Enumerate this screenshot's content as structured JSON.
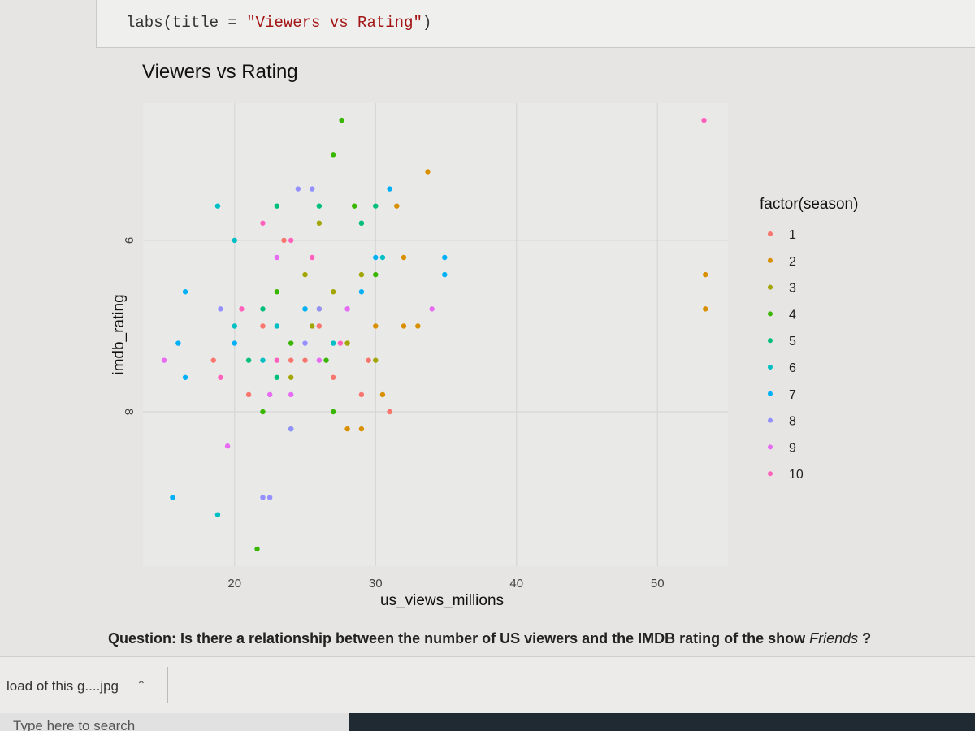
{
  "code": {
    "segments": [
      "labs(title = ",
      "\"Viewers vs Rating\"",
      ")"
    ]
  },
  "chart_data": {
    "type": "scatter",
    "title": "Viewers vs Rating",
    "x_label": "us_views_millions",
    "y_label": "imdb_rating",
    "legend_title": "factor(season)",
    "xlim": [
      13.5,
      55
    ],
    "ylim": [
      7.1,
      9.8
    ],
    "xticks": [
      20,
      30,
      40,
      50
    ],
    "yticks": [
      8,
      9
    ],
    "grid": true,
    "legend": "right",
    "series": [
      {
        "name": "1",
        "color": "#F8766D",
        "x": [
          18.5,
          21,
          22,
          24,
          25,
          26,
          27,
          29,
          29.5,
          31,
          23.5
        ],
        "values": [
          8.3,
          8.1,
          8.5,
          8.3,
          8.3,
          8.5,
          8.2,
          8.1,
          8.3,
          8.0,
          9.0
        ]
      },
      {
        "name": "2",
        "color": "#D89000",
        "x": [
          33.7,
          31.5,
          32,
          30,
          32,
          33,
          30.5,
          28,
          29,
          53.4,
          53.4
        ],
        "values": [
          9.4,
          9.2,
          8.9,
          8.5,
          8.5,
          8.5,
          8.1,
          7.9,
          7.9,
          8.8,
          8.6
        ]
      },
      {
        "name": "3",
        "color": "#A3A500",
        "x": [
          26,
          25,
          27,
          25.5,
          28,
          30,
          24,
          26,
          29
        ],
        "values": [
          9.1,
          8.8,
          8.7,
          8.5,
          8.4,
          8.3,
          8.2,
          8.6,
          8.8
        ]
      },
      {
        "name": "4",
        "color": "#39B600",
        "x": [
          27.6,
          27,
          29,
          28.5,
          23,
          24,
          26.5,
          22,
          21.6,
          30,
          27
        ],
        "values": [
          9.7,
          9.5,
          9.1,
          9.2,
          8.7,
          8.4,
          8.3,
          8.0,
          7.2,
          8.8,
          8.0
        ]
      },
      {
        "name": "5",
        "color": "#00BF7D",
        "x": [
          23,
          26,
          30,
          29,
          22,
          25,
          21,
          23,
          24
        ],
        "values": [
          9.2,
          9.2,
          9.2,
          9.1,
          8.6,
          8.6,
          8.3,
          8.2,
          7.9
        ]
      },
      {
        "name": "6",
        "color": "#00BFC4",
        "x": [
          18.8,
          20,
          18.8,
          23,
          22,
          20,
          30.5,
          27
        ],
        "values": [
          9.2,
          9.0,
          7.4,
          8.5,
          8.3,
          8.5,
          8.9,
          8.4
        ]
      },
      {
        "name": "7",
        "color": "#00B0F6",
        "x": [
          16.5,
          15.6,
          16,
          16.5,
          31,
          30,
          29,
          25,
          34.9,
          34.9,
          20
        ],
        "values": [
          8.7,
          7.5,
          8.4,
          8.2,
          9.3,
          8.9,
          8.7,
          8.6,
          8.9,
          8.8,
          8.4
        ]
      },
      {
        "name": "8",
        "color": "#9590FF",
        "x": [
          24.5,
          25.5,
          22,
          22.5,
          24,
          19,
          25,
          26,
          28
        ],
        "values": [
          9.3,
          9.3,
          7.5,
          7.5,
          7.9,
          8.6,
          8.4,
          8.6,
          8.6
        ]
      },
      {
        "name": "9",
        "color": "#E76BF3",
        "x": [
          19.5,
          34,
          23,
          26,
          15,
          22.5,
          28,
          24
        ],
        "values": [
          7.8,
          8.6,
          8.9,
          8.3,
          8.3,
          8.1,
          8.6,
          8.1
        ]
      },
      {
        "name": "10",
        "color": "#FF62BC",
        "x": [
          53.3,
          22,
          24,
          25.5,
          20.5,
          19,
          23,
          27.5
        ],
        "values": [
          9.7,
          9.1,
          9.0,
          8.9,
          8.6,
          8.2,
          8.3,
          8.4
        ]
      }
    ]
  },
  "question": {
    "text": "Question: Is there a relationship between the number of US viewers and the IMDB rating of the show ",
    "emphasis": "Friends",
    "end": " ?"
  },
  "download": {
    "file": "load of this g....jpg"
  },
  "taskbar": {
    "search": "Type here to search"
  }
}
